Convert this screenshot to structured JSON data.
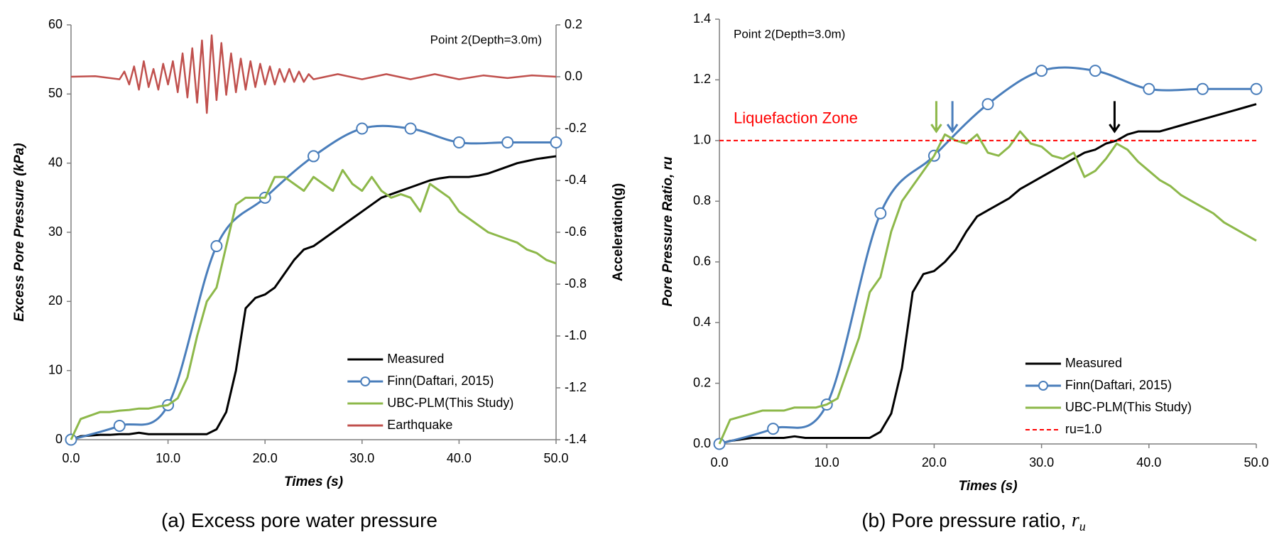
{
  "chart_data": [
    {
      "type": "line",
      "annotation": "Point 2(Depth=3.0m)",
      "caption": "(a) Excess pore water pressure",
      "xlabel": "Times (s)",
      "ylabel": "Excess Pore Pressure (kPa)",
      "y2label": "Acceleration(g)",
      "xlim": [
        0,
        50
      ],
      "xticks": [
        {
          "value": 0,
          "label": "0.0"
        },
        {
          "value": 10,
          "label": "10.0"
        },
        {
          "value": 20,
          "label": "20.0"
        },
        {
          "value": 30,
          "label": "30.0"
        },
        {
          "value": 40,
          "label": "40.0"
        },
        {
          "value": 50,
          "label": "50.0"
        }
      ],
      "ylim": [
        0,
        60
      ],
      "yticks": [
        0,
        10,
        20,
        30,
        40,
        50,
        60
      ],
      "y2lim": [
        -1.4,
        0.2
      ],
      "y2ticks": [
        -1.4,
        -1.2,
        {
          "value": -1,
          "label": "-1.0"
        },
        -0.8,
        -0.6,
        -0.4,
        -0.2,
        {
          "value": 0,
          "label": "0.0"
        },
        0.2
      ],
      "legend": "lower right",
      "x": [
        0,
        1,
        2,
        3,
        4,
        5,
        6,
        7,
        8,
        9,
        10,
        11,
        12,
        13,
        14,
        15,
        16,
        17,
        18,
        19,
        20,
        21,
        22,
        23,
        24,
        25,
        26,
        27,
        28,
        29,
        30,
        31,
        32,
        33,
        34,
        35,
        36,
        37,
        38,
        39,
        40,
        41,
        42,
        43,
        44,
        45,
        46,
        47,
        48,
        49,
        50
      ],
      "series": [
        {
          "name": "Measured",
          "color": "#000000",
          "values": [
            0,
            0.5,
            0.6,
            0.7,
            0.7,
            0.8,
            0.8,
            1,
            0.8,
            0.8,
            0.8,
            0.8,
            0.8,
            0.8,
            0.8,
            1.5,
            4,
            10,
            19,
            20.5,
            21,
            22,
            24,
            26,
            27.5,
            28,
            29,
            30,
            31,
            32,
            33,
            34,
            35,
            35.5,
            36,
            36.5,
            37,
            37.5,
            37.8,
            38,
            38,
            38,
            38.2,
            38.5,
            39,
            39.5,
            40,
            40.3,
            40.6,
            40.8,
            41
          ]
        },
        {
          "name": "Finn(Daftari, 2015)",
          "color": "#4a7ebb",
          "marker": true,
          "smooth": true,
          "x": [
            0,
            5,
            10,
            15,
            20,
            25,
            30,
            35,
            40,
            45,
            50
          ],
          "values": [
            0,
            2,
            5,
            28,
            35,
            41,
            45,
            45,
            43,
            43,
            43
          ]
        },
        {
          "name": "UBC-PLM(This Study)",
          "color": "#8db84a",
          "values": [
            0,
            3,
            3.5,
            4,
            4,
            4.2,
            4.3,
            4.5,
            4.5,
            4.8,
            5,
            6,
            9,
            15,
            20,
            22,
            28,
            34,
            35,
            35,
            35,
            38,
            38,
            37,
            36,
            38,
            37,
            36,
            39,
            37,
            36,
            38,
            36,
            35,
            35.5,
            35,
            33,
            37,
            36,
            35,
            33,
            32,
            31,
            30,
            29.5,
            29,
            28.5,
            27.5,
            27,
            26,
            25.5
          ]
        },
        {
          "name": "Earthquake",
          "color": "#c0504d",
          "axis": "y2",
          "x": [
            0,
            2.5,
            5,
            5.5,
            6,
            6.5,
            7,
            7.5,
            8,
            8.5,
            9,
            9.5,
            10,
            10.5,
            11,
            11.5,
            12,
            12.5,
            13,
            13.5,
            14,
            14.5,
            15,
            15.5,
            16,
            16.5,
            17,
            17.5,
            18,
            18.5,
            19,
            19.5,
            20,
            20.5,
            21,
            21.5,
            22,
            22.5,
            23,
            23.5,
            24,
            24.5,
            25,
            27.5,
            30,
            32.5,
            35,
            37.5,
            40,
            42.5,
            45,
            47.5,
            50
          ],
          "values": [
            0,
            0.002,
            -0.01,
            0.02,
            -0.03,
            0.04,
            -0.05,
            0.06,
            -0.04,
            0.03,
            -0.05,
            0.05,
            -0.03,
            0.06,
            -0.06,
            0.09,
            -0.08,
            0.11,
            -0.1,
            0.14,
            -0.14,
            0.16,
            -0.09,
            0.13,
            -0.07,
            0.09,
            -0.06,
            0.07,
            -0.05,
            0.06,
            -0.04,
            0.05,
            -0.03,
            0.04,
            -0.03,
            0.03,
            -0.02,
            0.03,
            -0.02,
            0.02,
            -0.02,
            0.01,
            -0.01,
            0.01,
            -0.01,
            0.01,
            -0.01,
            0.01,
            -0.01,
            0.005,
            -0.005,
            0.005,
            0
          ]
        }
      ]
    },
    {
      "type": "line",
      "annotation": "Point 2(Depth=3.0m)",
      "zone_label": "Liquefaction Zone",
      "caption": "(b) Pore pressure ratio, ",
      "caption_symbol": "r",
      "caption_subscript": "u",
      "xlabel": "Times (s)",
      "ylabel": "Pore Pressure Ratio, ru",
      "xlim": [
        0,
        50
      ],
      "xticks": [
        {
          "value": 0,
          "label": "0.0"
        },
        {
          "value": 10,
          "label": "10.0"
        },
        {
          "value": 20,
          "label": "20.0"
        },
        {
          "value": 30,
          "label": "30.0"
        },
        {
          "value": 40,
          "label": "40.0"
        },
        {
          "value": 50,
          "label": "50.0"
        }
      ],
      "ylim": [
        0,
        1.4
      ],
      "yticks": [
        {
          "value": 0,
          "label": "0.0"
        },
        0.2,
        0.4,
        0.6,
        0.8,
        {
          "value": 1,
          "label": "1.0"
        },
        1.2,
        1.4
      ],
      "legend": "lower right",
      "x": [
        0,
        1,
        2,
        3,
        4,
        5,
        6,
        7,
        8,
        9,
        10,
        11,
        12,
        13,
        14,
        15,
        16,
        17,
        18,
        19,
        20,
        21,
        22,
        23,
        24,
        25,
        26,
        27,
        28,
        29,
        30,
        31,
        32,
        33,
        34,
        35,
        36,
        37,
        38,
        39,
        40,
        41,
        42,
        43,
        44,
        45,
        46,
        47,
        48,
        49,
        50
      ],
      "series": [
        {
          "name": "Measured",
          "color": "#000000",
          "values": [
            0,
            0.01,
            0.015,
            0.02,
            0.02,
            0.02,
            0.02,
            0.025,
            0.02,
            0.02,
            0.02,
            0.02,
            0.02,
            0.02,
            0.02,
            0.04,
            0.1,
            0.25,
            0.5,
            0.56,
            0.57,
            0.6,
            0.64,
            0.7,
            0.75,
            0.77,
            0.79,
            0.81,
            0.84,
            0.86,
            0.88,
            0.9,
            0.92,
            0.94,
            0.96,
            0.97,
            0.99,
            1.0,
            1.02,
            1.03,
            1.03,
            1.03,
            1.04,
            1.05,
            1.06,
            1.07,
            1.08,
            1.09,
            1.1,
            1.11,
            1.12
          ]
        },
        {
          "name": "Finn(Daftari, 2015)",
          "color": "#4a7ebb",
          "marker": true,
          "smooth": true,
          "x": [
            0,
            5,
            10,
            15,
            20,
            25,
            30,
            35,
            40,
            45,
            50
          ],
          "values": [
            0,
            0.05,
            0.13,
            0.76,
            0.95,
            1.12,
            1.23,
            1.23,
            1.17,
            1.17,
            1.17
          ]
        },
        {
          "name": "UBC-PLM(This Study)",
          "color": "#8db84a",
          "values": [
            0,
            0.08,
            0.09,
            0.1,
            0.11,
            0.11,
            0.11,
            0.12,
            0.12,
            0.12,
            0.13,
            0.15,
            0.25,
            0.35,
            0.5,
            0.55,
            0.7,
            0.8,
            0.85,
            0.9,
            0.95,
            1.02,
            1.0,
            0.99,
            1.02,
            0.96,
            0.95,
            0.98,
            1.03,
            0.99,
            0.98,
            0.95,
            0.94,
            0.96,
            0.88,
            0.9,
            0.94,
            0.99,
            0.97,
            0.93,
            0.9,
            0.87,
            0.85,
            0.82,
            0.8,
            0.78,
            0.76,
            0.73,
            0.71,
            0.69,
            0.67
          ]
        },
        {
          "name": "ru=1.0",
          "color": "#ff0000",
          "dashed": true,
          "x": [
            0,
            50
          ],
          "values": [
            1,
            1
          ]
        }
      ],
      "arrows": [
        {
          "x": 20.2,
          "y_top": 1.13,
          "y_tip": 1.03,
          "color": "#8db84a"
        },
        {
          "x": 21.7,
          "y_top": 1.13,
          "y_tip": 1.03,
          "color": "#4a7ebb"
        },
        {
          "x": 36.8,
          "y_top": 1.13,
          "y_tip": 1.03,
          "color": "#000000"
        }
      ]
    }
  ]
}
